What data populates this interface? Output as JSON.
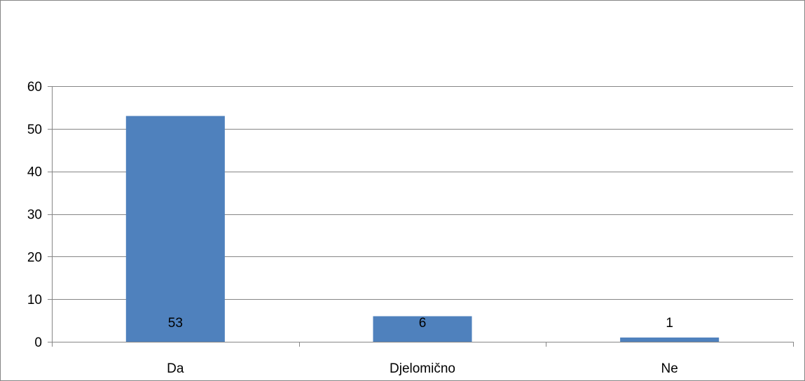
{
  "chart_data": {
    "type": "bar",
    "categories": [
      "Da",
      "Djelomično",
      "Ne"
    ],
    "values": [
      53,
      6,
      1
    ],
    "data_labels": [
      "53",
      "6",
      "1"
    ],
    "title": "",
    "xlabel": "",
    "ylabel": "",
    "ylim": [
      0,
      60
    ],
    "y_ticks": [
      0,
      10,
      20,
      30,
      40,
      50,
      60
    ],
    "y_tick_labels": [
      "0",
      "10",
      "20",
      "30",
      "40",
      "50",
      "60"
    ],
    "grid": true,
    "legend": "none",
    "colors": {
      "bar": "#4F81BD",
      "grid": "#868686",
      "axis": "#868686",
      "frame": "#868686",
      "text": "#000000"
    }
  }
}
